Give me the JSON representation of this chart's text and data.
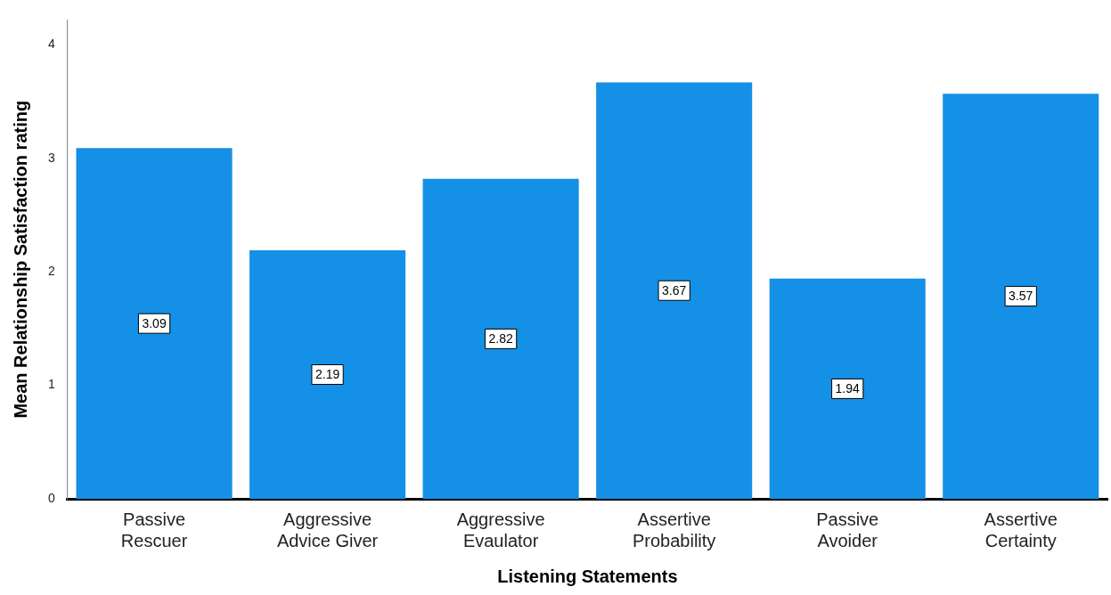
{
  "chart_data": {
    "type": "bar",
    "xlabel": "Listening Statements",
    "ylabel": "Mean Relationship Satisfaction rating",
    "categories": [
      "Passive Rescuer",
      "Aggressive Advice Giver",
      "Aggressive Evaulator",
      "Assertive Probability",
      "Passive Avoider",
      "Assertive Certainty"
    ],
    "values": [
      3.09,
      2.19,
      2.82,
      3.67,
      1.94,
      3.57
    ],
    "color": "#1490e6",
    "ylim": [
      0,
      4.22
    ],
    "yticks": [
      0,
      1,
      2,
      3,
      4
    ],
    "grid": false,
    "legend": false,
    "data_labels": true
  }
}
